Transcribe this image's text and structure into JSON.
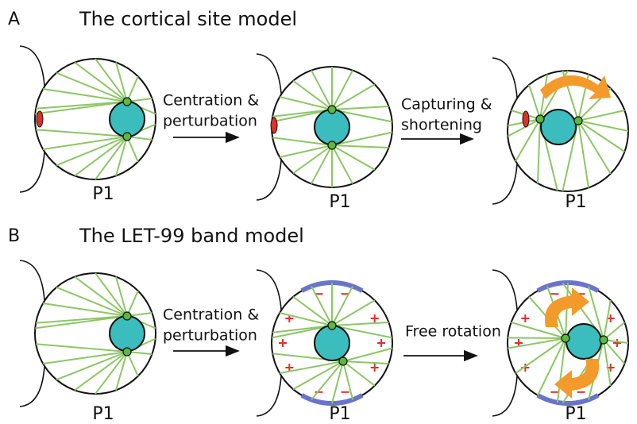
{
  "panels": [
    {
      "letter": "A",
      "title": "The cortical site model",
      "cells": [
        {
          "label": "P1"
        },
        {
          "label": "P1"
        },
        {
          "label": "P1"
        }
      ],
      "steps": [
        {
          "lines": [
            "Centration &",
            "perturbation"
          ]
        },
        {
          "lines": [
            "Capturing &",
            "shortening"
          ]
        }
      ]
    },
    {
      "letter": "B",
      "title": "The LET-99 band model",
      "cells": [
        {
          "label": "P1"
        },
        {
          "label": "P1"
        },
        {
          "label": "P1"
        }
      ],
      "steps": [
        {
          "lines": [
            "Centration &",
            "perturbation"
          ]
        },
        {
          "lines": [
            "Free rotation"
          ]
        }
      ]
    }
  ]
}
